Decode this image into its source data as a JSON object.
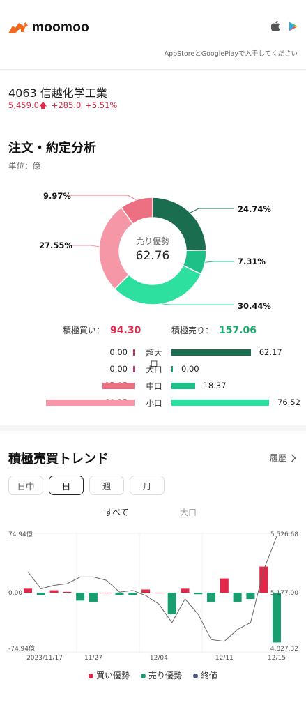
{
  "header": {
    "brand": "moomoo",
    "tagline": "AppStoreとGooglePlayで入手してください"
  },
  "stock": {
    "name": "4063  信越化学工業",
    "price": "5,459.0",
    "change": "+285.0",
    "change_pct": "+5.51%"
  },
  "analysis": {
    "title": "注文・約定分析",
    "unit": "単位：億",
    "center_label": "売り優勢",
    "center_value": "62.76",
    "donut": [
      {
        "name": "sell-super-large",
        "percent": 24.74,
        "label": "24.74%",
        "color": "#1a6e4f"
      },
      {
        "name": "sell-middle",
        "percent": 7.31,
        "label": "7.31%",
        "color": "#1fbf88"
      },
      {
        "name": "sell-small",
        "percent": 30.44,
        "label": "30.44%",
        "color": "#2ee0a0"
      },
      {
        "name": "buy-small",
        "percent": 27.55,
        "label": "27.55%",
        "color": "#f597a6"
      },
      {
        "name": "buy-middle",
        "percent": 9.97,
        "label": "9.97%",
        "color": "#ec6f82"
      }
    ],
    "buy_total_label": "積極買い：",
    "buy_total": "94.30",
    "sell_total_label": "積極売り：",
    "sell_total": "157.06",
    "rows": [
      {
        "category": "超大口",
        "buy": "0.00",
        "sell": "62.17",
        "buy_value": 0.0,
        "sell_value": 62.17,
        "buy_color": "#e0294a",
        "sell_color": "#1a6e4f"
      },
      {
        "category": "大口",
        "buy": "0.00",
        "sell": "0.00",
        "buy_value": 0.0,
        "sell_value": 0.0,
        "buy_color": "#e0294a",
        "sell_color": "#1a9e70"
      },
      {
        "category": "中口",
        "buy": "25.05",
        "sell": "18.37",
        "buy_value": 25.05,
        "sell_value": 18.37,
        "buy_color": "#ec6f82",
        "sell_color": "#1fbf88"
      },
      {
        "category": "小口",
        "buy": "69.25",
        "sell": "76.52",
        "buy_value": 69.25,
        "sell_value": 76.52,
        "buy_color": "#f597a6",
        "sell_color": "#2ee0a0"
      }
    ]
  },
  "trend": {
    "title": "積極売買トレンド",
    "history_label": "履歴",
    "tabs": [
      "日中",
      "日",
      "週",
      "月"
    ],
    "active_tab": 1,
    "subtabs": [
      "すべて",
      "大口"
    ],
    "active_subtab": 0,
    "legend": [
      {
        "label": "買い優勢",
        "color": "#e0294a"
      },
      {
        "label": "売り優勢",
        "color": "#1a9e70"
      },
      {
        "label": "終値",
        "color": "#4a5a78"
      }
    ]
  },
  "chart_data": {
    "type": "bar",
    "y_left_ticks": [
      "74.94億",
      "0.00",
      "-74.94億"
    ],
    "y_left_range": [
      -74.94,
      74.94
    ],
    "y_right_ticks": [
      "5,526.68",
      "5,177.00",
      "4,827.32"
    ],
    "y_right_range": [
      4827.32,
      5526.68
    ],
    "x_tick_labels": [
      "2023/11/17",
      "11/27",
      "12/04",
      "12/11",
      "12/15"
    ],
    "x_tick_index": [
      0,
      5,
      10,
      15,
      19
    ],
    "series": [
      {
        "name": "買い優勢 / 売り優勢",
        "values": [
          5,
          -3,
          3,
          1,
          -10,
          -12,
          0,
          -3,
          -3,
          4,
          0,
          -27,
          5,
          -2,
          -12,
          18,
          -12,
          -8,
          33,
          -63
        ]
      },
      {
        "name": "終値",
        "values": [
          5300,
          5200,
          5220,
          5230,
          5270,
          5270,
          5250,
          5180,
          5190,
          5160,
          5110,
          5000,
          5140,
          5050,
          4900,
          4890,
          4960,
          5000,
          5310,
          5510
        ]
      }
    ]
  }
}
